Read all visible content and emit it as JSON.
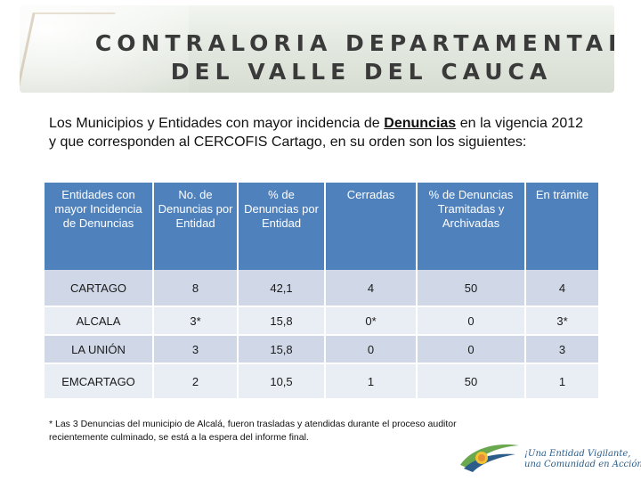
{
  "banner": {
    "line1": "CONTRALORIA DEPARTAMENTAL",
    "line2": "DEL VALLE DEL CAUCA"
  },
  "intro": {
    "before": "Los Municipios y Entidades con mayor incidencia de ",
    "emphasis": "Denuncias",
    "after": " en la vigencia 2012 y que corresponden al CERCOFIS Cartago, en su orden son los siguientes:"
  },
  "table": {
    "headers": [
      "Entidades con mayor Incidencia de Denuncias",
      "No. de Denuncias por Entidad",
      "% de Denuncias por Entidad",
      "Cerradas",
      "% de Denuncias Tramitadas y Archivadas",
      "En trámite"
    ],
    "rows": [
      [
        "CARTAGO",
        "8",
        "42,1",
        "4",
        "50",
        "4"
      ],
      [
        "ALCALA",
        "3*",
        "15,8",
        "0*",
        "0",
        "3*"
      ],
      [
        "LA UNIÓN",
        "3",
        "15,8",
        "0",
        "0",
        "3"
      ],
      [
        "EMCARTAGO",
        "2",
        "10,5",
        "1",
        "50",
        "1"
      ]
    ]
  },
  "footnote": "* Las 3 Denuncias del municipio de Alcalá, fueron trasladas y atendidas durante el proceso auditor recientemente culminado, se está a la espera del informe final.",
  "logo": {
    "line1": "¡Una Entidad Vigilante,",
    "line2": "una Comunidad en Acción!"
  },
  "colors": {
    "header_bg": "#4f81bd",
    "row_dark": "#d0d8e8",
    "row_light": "#e9edf4",
    "logo_text": "#2b5c8a"
  }
}
